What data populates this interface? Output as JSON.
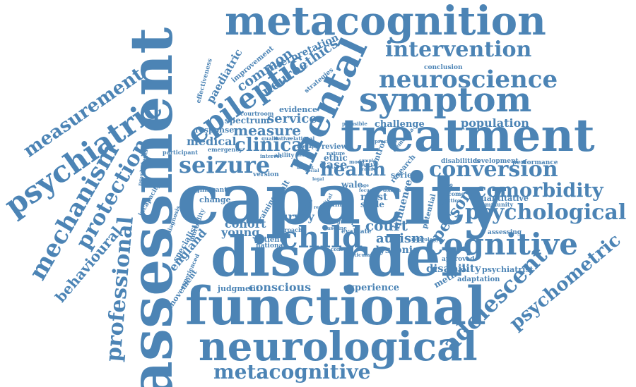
{
  "theme": {
    "word_color": "#4c84b5",
    "background": "#ffffff"
  },
  "words": {
    "capacity": "capacity",
    "disorder": "disorder",
    "functional": "functional",
    "neurological": "neurological",
    "assessment": "assessment",
    "mental": "mental",
    "treatment": "treatment",
    "metacognition": "metacognition",
    "symptom": "symptom",
    "epileptic": "epileptic",
    "neuroscience": "neuroscience",
    "intervention": "intervention",
    "psychiatric": "psychiatric",
    "measurement": "measurement",
    "mechanism": "mechanism",
    "protection": "protection",
    "professional": "professional",
    "behavioural": "behavioural",
    "seizure": "seizure",
    "child": "child",
    "cognitive": "cognitive",
    "psychological": "psychological",
    "comorbidity": "comorbidity",
    "conversion": "conversion",
    "adolescent": "adolescent",
    "psychometric": "psychometric",
    "metacognitive": "metacognitive",
    "health": "health",
    "clinical": "clinical",
    "measure": "measure",
    "medical": "medical",
    "service": "service",
    "spectrum": "spectrum",
    "neuroethics": "neuroethics",
    "common": "common",
    "paediatric": "paediatric",
    "interpretation": "interpretation",
    "improvement": "improvement",
    "effectiveness": "effectiveness",
    "strategies": "strategies",
    "evidence": "evidence",
    "courtroom": "courtroom",
    "response": "response",
    "emergency": "emergency",
    "participant": "participant",
    "psychologist": "psychologist",
    "incapacity": "incapacity",
    "significant": "significant",
    "change": "change",
    "specialist": "specialist",
    "diagnosis": "diagnosis",
    "morbidity": "morbidity",
    "england": "england",
    "movement": "movement",
    "experienced": "experienced",
    "judgment": "judgment",
    "conscious": "conscious",
    "young": "young",
    "cohort": "cohort",
    "patient": "patient",
    "national": "national",
    "approach": "approach",
    "survey": "survey",
    "court": "court",
    "autism": "autism",
    "dystonia": "dystonia",
    "experience": "experience",
    "evaluate": "evaluate",
    "baseline": "baseline",
    "concern": "concern",
    "particular": "particular",
    "neurology": "neurology",
    "method": "method",
    "disability": "disability",
    "approved": "approved",
    "adaptation": "adaptation",
    "psychiatrist": "psychiatrist",
    "assessing": "assessing",
    "quantitative": "quantitative",
    "community": "community",
    "outcome": "outcome",
    "function": "function",
    "effective": "effective",
    "potential": "potential",
    "influence": "influence",
    "person": "person",
    "research": "research",
    "series": "series",
    "case": "case",
    "ethic": "ethic",
    "review": "review",
    "wale": "wale",
    "most": "most",
    "scale": "scale",
    "brain": "brain",
    "group": "group",
    "target": "target",
    "result": "result",
    "training": "training",
    "version": "version",
    "ability": "ability",
    "interest": "interest",
    "control": "control",
    "dementia": "dementia",
    "practice": "practice",
    "plausible": "plausible",
    "challenge": "challenge",
    "population": "population",
    "development": "development",
    "disabilities": "disabilities",
    "performance": "performance",
    "conclusion": "conclusion",
    "qualitative": "qualitative",
    "relational": "relational",
    "therapy": "therapy",
    "nature": "nature",
    "mood": "mood",
    "sample": "sample",
    "worker": "worker",
    "rating": "rating",
    "default": "default",
    "deficit": "deficit",
    "focus": "focus",
    "age": "age",
    "report": "report",
    "practical": "practical",
    "social": "social",
    "legal": "legal",
    "domain": "domain"
  }
}
